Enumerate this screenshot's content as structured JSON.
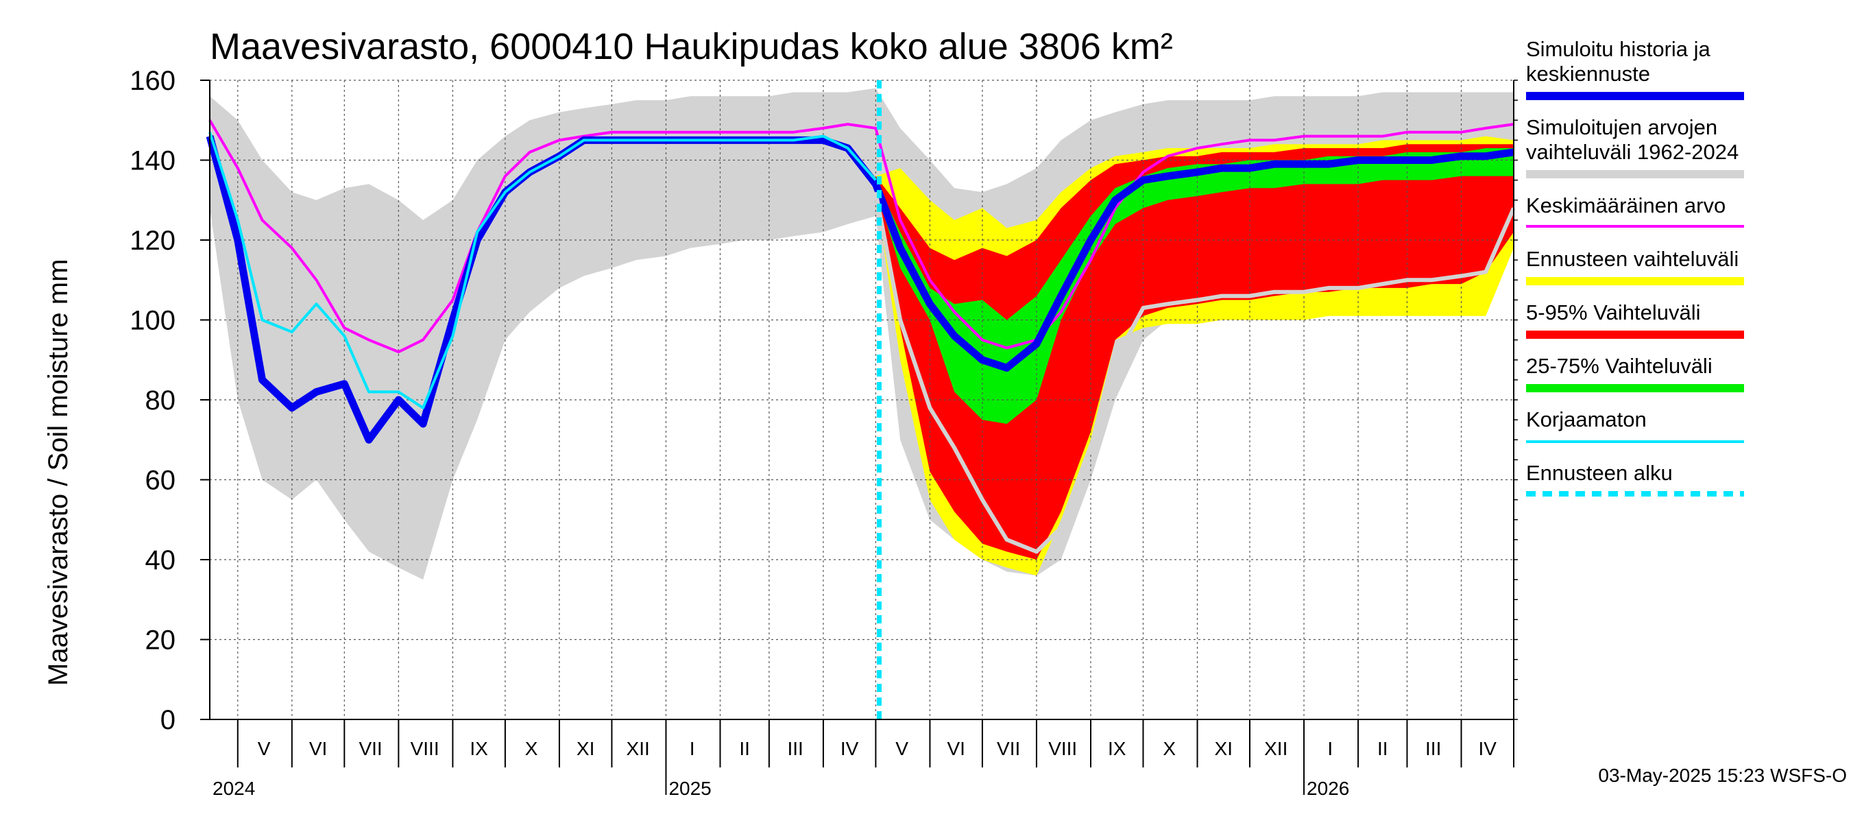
{
  "chart_data": {
    "type": "area",
    "title": "Maavesivarasto, 6000410 Haukipudas koko alue 3806 km²",
    "ylabel": "Maavesivarasto / Soil moisture   mm",
    "ylim": [
      0,
      160
    ],
    "y_ticks": [
      "0",
      "20",
      "40",
      "60",
      "80",
      "100",
      "120",
      "140",
      "160"
    ],
    "x_range": [
      "2024-04-15",
      "2026-05-01"
    ],
    "forecast_start": "2025-05-03",
    "months": [
      {
        "label": "V",
        "date": "2024-05-16"
      },
      {
        "label": "VI",
        "date": "2024-06-16"
      },
      {
        "label": "VII",
        "date": "2024-07-16"
      },
      {
        "label": "VIII",
        "date": "2024-08-16"
      },
      {
        "label": "IX",
        "date": "2024-09-16"
      },
      {
        "label": "X",
        "date": "2024-10-16"
      },
      {
        "label": "XI",
        "date": "2024-11-16"
      },
      {
        "label": "XII",
        "date": "2024-12-16"
      },
      {
        "label": "I",
        "date": "2025-01-16"
      },
      {
        "label": "II",
        "date": "2025-02-15"
      },
      {
        "label": "III",
        "date": "2025-03-16"
      },
      {
        "label": "IV",
        "date": "2025-04-16"
      },
      {
        "label": "V",
        "date": "2025-05-16"
      },
      {
        "label": "VI",
        "date": "2025-06-16"
      },
      {
        "label": "VII",
        "date": "2025-07-16"
      },
      {
        "label": "VIII",
        "date": "2025-08-16"
      },
      {
        "label": "IX",
        "date": "2025-09-16"
      },
      {
        "label": "X",
        "date": "2025-10-16"
      },
      {
        "label": "XI",
        "date": "2025-11-16"
      },
      {
        "label": "XII",
        "date": "2025-12-16"
      },
      {
        "label": "I",
        "date": "2026-01-16"
      },
      {
        "label": "II",
        "date": "2026-02-15"
      },
      {
        "label": "III",
        "date": "2026-03-16"
      },
      {
        "label": "IV",
        "date": "2026-04-16"
      }
    ],
    "years": [
      {
        "label": "2024",
        "date": "2024-04-15"
      },
      {
        "label": "2025",
        "date": "2025-01-01"
      },
      {
        "label": "2026",
        "date": "2026-01-01"
      }
    ],
    "x": [
      "2024-04-15",
      "2024-05-01",
      "2024-05-15",
      "2024-06-01",
      "2024-06-15",
      "2024-07-01",
      "2024-07-15",
      "2024-08-01",
      "2024-08-15",
      "2024-09-01",
      "2024-09-15",
      "2024-10-01",
      "2024-10-15",
      "2024-11-01",
      "2024-11-15",
      "2024-12-01",
      "2024-12-15",
      "2025-01-01",
      "2025-01-15",
      "2025-02-01",
      "2025-02-15",
      "2025-03-01",
      "2025-03-15",
      "2025-04-01",
      "2025-04-15",
      "2025-05-01",
      "2025-05-15",
      "2025-06-01",
      "2025-06-15",
      "2025-07-01",
      "2025-07-15",
      "2025-08-01",
      "2025-08-15",
      "2025-09-01",
      "2025-09-15",
      "2025-10-01",
      "2025-10-15",
      "2025-11-01",
      "2025-11-15",
      "2025-12-01",
      "2025-12-15",
      "2026-01-01",
      "2026-01-15",
      "2026-02-01",
      "2026-02-15",
      "2026-03-01",
      "2026-03-15",
      "2026-04-01",
      "2026-04-15",
      "2026-05-01"
    ],
    "series": [
      {
        "name": "Simuloitujen arvojen vaihteluväli 1962-2024",
        "color": "#d3d3d3",
        "kind": "band",
        "lower": [
          128,
          80,
          60,
          55,
          60,
          50,
          42,
          38,
          35,
          60,
          75,
          95,
          102,
          108,
          111,
          113,
          115,
          116,
          118,
          119,
          120,
          120,
          121,
          122,
          124,
          126,
          70,
          50,
          45,
          40,
          37,
          36,
          40,
          60,
          80,
          95,
          100,
          102,
          104,
          105,
          106,
          107,
          108,
          108,
          109,
          109,
          110,
          110,
          112,
          125
        ],
        "upper": [
          156,
          150,
          140,
          132,
          130,
          133,
          134,
          130,
          125,
          130,
          140,
          146,
          150,
          152,
          153,
          154,
          155,
          155,
          156,
          156,
          156,
          156,
          157,
          157,
          157,
          158,
          148,
          140,
          133,
          132,
          134,
          138,
          145,
          150,
          152,
          154,
          155,
          155,
          155,
          155,
          156,
          156,
          156,
          156,
          157,
          157,
          157,
          157,
          157,
          157
        ]
      },
      {
        "name": "Ennusteen vaihteluväli",
        "color": "#ffff00",
        "kind": "band",
        "lower": [
          null,
          null,
          null,
          null,
          null,
          null,
          null,
          null,
          null,
          null,
          null,
          null,
          null,
          null,
          null,
          null,
          null,
          null,
          null,
          null,
          null,
          null,
          null,
          null,
          null,
          132,
          90,
          55,
          45,
          40,
          38,
          36,
          50,
          70,
          95,
          98,
          99,
          99,
          100,
          100,
          100,
          100,
          101,
          101,
          101,
          101,
          101,
          101,
          101,
          118
        ],
        "upper": [
          null,
          null,
          null,
          null,
          null,
          null,
          null,
          null,
          null,
          null,
          null,
          null,
          null,
          null,
          null,
          null,
          null,
          null,
          null,
          null,
          null,
          null,
          null,
          null,
          null,
          136,
          138,
          130,
          125,
          128,
          123,
          125,
          132,
          138,
          141,
          142,
          143,
          143,
          143,
          143,
          144,
          144,
          144,
          144,
          145,
          145,
          145,
          145,
          146,
          145
        ]
      },
      {
        "name": "5-95% Vaihteluväli",
        "color": "#ff0000",
        "kind": "band",
        "lower": [
          null,
          null,
          null,
          null,
          null,
          null,
          null,
          null,
          null,
          null,
          null,
          null,
          null,
          null,
          null,
          null,
          null,
          null,
          null,
          null,
          null,
          null,
          null,
          null,
          null,
          132,
          98,
          62,
          52,
          44,
          42,
          40,
          52,
          72,
          95,
          101,
          103,
          104,
          105,
          105,
          106,
          107,
          107,
          108,
          108,
          108,
          109,
          109,
          112,
          122
        ],
        "upper": [
          null,
          null,
          null,
          null,
          null,
          null,
          null,
          null,
          null,
          null,
          null,
          null,
          null,
          null,
          null,
          null,
          null,
          null,
          null,
          null,
          null,
          null,
          null,
          null,
          null,
          136,
          128,
          118,
          115,
          118,
          116,
          120,
          128,
          135,
          139,
          140,
          141,
          141,
          142,
          142,
          142,
          143,
          143,
          143,
          143,
          144,
          144,
          144,
          144,
          144
        ]
      },
      {
        "name": "25-75% Vaihteluväli",
        "color": "#00ee00",
        "kind": "band",
        "lower": [
          null,
          null,
          null,
          null,
          null,
          null,
          null,
          null,
          null,
          null,
          null,
          null,
          null,
          null,
          null,
          null,
          null,
          null,
          null,
          null,
          null,
          null,
          null,
          null,
          null,
          133,
          113,
          100,
          82,
          75,
          74,
          80,
          100,
          115,
          124,
          128,
          130,
          131,
          132,
          133,
          133,
          134,
          134,
          134,
          135,
          135,
          135,
          136,
          136,
          136
        ],
        "upper": [
          null,
          null,
          null,
          null,
          null,
          null,
          null,
          null,
          null,
          null,
          null,
          null,
          null,
          null,
          null,
          null,
          null,
          null,
          null,
          null,
          null,
          null,
          null,
          null,
          null,
          135,
          122,
          108,
          104,
          105,
          100,
          106,
          115,
          126,
          133,
          136,
          138,
          139,
          139,
          140,
          140,
          140,
          141,
          141,
          141,
          142,
          142,
          142,
          143,
          143
        ]
      },
      {
        "name": "Keskimääräinen arvo",
        "color": "#ff00ff",
        "kind": "line",
        "values": [
          150,
          138,
          125,
          118,
          110,
          98,
          95,
          92,
          95,
          105,
          122,
          136,
          142,
          145,
          146,
          147,
          147,
          147,
          147,
          147,
          147,
          147,
          147,
          148,
          149,
          148,
          125,
          110,
          102,
          95,
          93,
          95,
          102,
          115,
          128,
          137,
          141,
          143,
          144,
          145,
          145,
          146,
          146,
          146,
          146,
          147,
          147,
          147,
          148,
          149
        ]
      },
      {
        "name": "Simuloitu historia ja keskiennuste",
        "color": "#0000ee",
        "kind": "line",
        "values": [
          146,
          120,
          85,
          78,
          82,
          84,
          70,
          80,
          74,
          100,
          120,
          132,
          137,
          141,
          145,
          145,
          145,
          145,
          145,
          145,
          145,
          145,
          145,
          145,
          143,
          134,
          118,
          104,
          96,
          90,
          88,
          94,
          106,
          120,
          130,
          135,
          136,
          137,
          138,
          138,
          139,
          139,
          139,
          140,
          140,
          140,
          140,
          141,
          141,
          142
        ]
      },
      {
        "name": "Korjaamaton",
        "color": "#00e5ff",
        "kind": "line",
        "values": [
          147,
          125,
          100,
          97,
          104,
          96,
          82,
          82,
          78,
          96,
          122,
          132,
          137,
          141,
          145,
          145,
          145,
          145,
          145,
          145,
          145,
          145,
          145,
          146,
          143,
          135,
          null,
          null,
          null,
          null,
          null,
          null,
          null,
          null,
          null,
          null,
          null,
          null,
          null,
          null,
          null,
          null,
          null,
          null,
          null,
          null,
          null,
          null,
          null,
          null
        ]
      },
      {
        "name": "median-gray",
        "color": "#d3d3d3",
        "kind": "line",
        "values": [
          null,
          null,
          null,
          null,
          null,
          null,
          null,
          null,
          null,
          null,
          null,
          null,
          null,
          null,
          null,
          null,
          null,
          null,
          null,
          null,
          null,
          null,
          null,
          null,
          null,
          132,
          100,
          78,
          68,
          55,
          45,
          42,
          48,
          68,
          90,
          103,
          104,
          105,
          106,
          106,
          107,
          107,
          108,
          108,
          109,
          110,
          110,
          111,
          112,
          128
        ]
      }
    ],
    "legend": {
      "placement": "right",
      "items": [
        {
          "label": "Simuloitu historia ja keskiennuste",
          "color": "#0000ee",
          "style": "solid-thick"
        },
        {
          "label": "Simuloitujen arvojen vaihteluväli 1962-2024",
          "color": "#d3d3d3",
          "style": "solid-thick"
        },
        {
          "label": "Keskimääräinen arvo",
          "color": "#ff00ff",
          "style": "solid"
        },
        {
          "label": "Ennusteen vaihteluväli",
          "color": "#ffff00",
          "style": "solid-thick"
        },
        {
          "label": "5-95% Vaihteluväli",
          "color": "#ff0000",
          "style": "solid-thick"
        },
        {
          "label": "25-75% Vaihteluväli",
          "color": "#00ee00",
          "style": "solid-thick"
        },
        {
          "label": "Korjaamaton",
          "color": "#00e5ff",
          "style": "solid"
        },
        {
          "label": "Ennusteen alku",
          "color": "#00e5ff",
          "style": "dashed"
        }
      ]
    },
    "grid": true,
    "footer": "03-May-2025 15:23 WSFS-O"
  }
}
